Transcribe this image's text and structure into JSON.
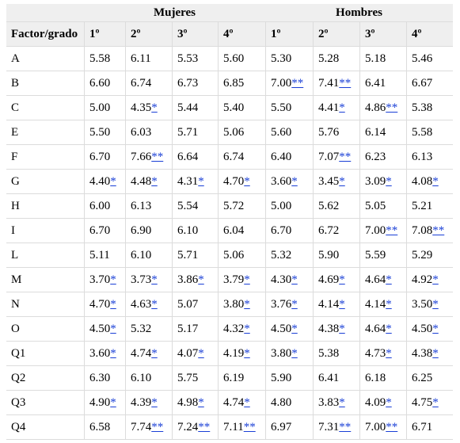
{
  "groups": {
    "mujeres": "Mujeres",
    "hombres": "Hombres"
  },
  "columns": [
    "Factor/grado",
    "1º",
    "2º",
    "3º",
    "4º",
    "1º",
    "2º",
    "3º",
    "4º"
  ],
  "rows": [
    {
      "factor": "A",
      "cells": [
        [
          "5.58",
          ""
        ],
        [
          "6.11",
          ""
        ],
        [
          "5.53",
          ""
        ],
        [
          "5.60",
          ""
        ],
        [
          "5.30",
          ""
        ],
        [
          "5.28",
          ""
        ],
        [
          "5.18",
          ""
        ],
        [
          "5.46",
          ""
        ]
      ]
    },
    {
      "factor": "B",
      "cells": [
        [
          "6.60",
          ""
        ],
        [
          "6.74",
          ""
        ],
        [
          "6.73",
          ""
        ],
        [
          "6.85",
          ""
        ],
        [
          "7.00",
          "**"
        ],
        [
          "7.41",
          "**"
        ],
        [
          "6.41",
          ""
        ],
        [
          "6.67",
          ""
        ]
      ]
    },
    {
      "factor": "C",
      "cells": [
        [
          "5.00",
          ""
        ],
        [
          "4.35",
          "*"
        ],
        [
          "5.44",
          ""
        ],
        [
          "5.40",
          ""
        ],
        [
          "5.50",
          ""
        ],
        [
          "4.41",
          "*"
        ],
        [
          "4.86",
          "**"
        ],
        [
          "5.38",
          ""
        ]
      ]
    },
    {
      "factor": "E",
      "cells": [
        [
          "5.50",
          ""
        ],
        [
          "6.03",
          ""
        ],
        [
          "5.71",
          ""
        ],
        [
          "5.06",
          ""
        ],
        [
          "5.60",
          ""
        ],
        [
          "5.76",
          ""
        ],
        [
          "6.14",
          ""
        ],
        [
          "5.58",
          ""
        ]
      ]
    },
    {
      "factor": "F",
      "cells": [
        [
          "6.70",
          ""
        ],
        [
          "7.66",
          "**"
        ],
        [
          "6.64",
          ""
        ],
        [
          "6.74",
          ""
        ],
        [
          "6.40",
          ""
        ],
        [
          "7.07",
          "**"
        ],
        [
          "6.23",
          ""
        ],
        [
          "6.13",
          ""
        ]
      ]
    },
    {
      "factor": "G",
      "cells": [
        [
          "4.40",
          "*"
        ],
        [
          "4.48",
          "*"
        ],
        [
          "4.31",
          "*"
        ],
        [
          "4.70",
          "*"
        ],
        [
          "3.60",
          "*"
        ],
        [
          "3.45",
          "*"
        ],
        [
          "3.09",
          "*"
        ],
        [
          "4.08",
          "*"
        ]
      ]
    },
    {
      "factor": "H",
      "cells": [
        [
          "6.00",
          ""
        ],
        [
          "6.13",
          ""
        ],
        [
          "5.54",
          ""
        ],
        [
          "5.72",
          ""
        ],
        [
          "5.00",
          ""
        ],
        [
          "5.62",
          ""
        ],
        [
          "5.05",
          ""
        ],
        [
          "5.21",
          ""
        ]
      ]
    },
    {
      "factor": "I",
      "cells": [
        [
          "6.70",
          ""
        ],
        [
          "6.90",
          ""
        ],
        [
          "6.10",
          ""
        ],
        [
          "6.04",
          ""
        ],
        [
          "6.70",
          ""
        ],
        [
          "6.72",
          ""
        ],
        [
          "7.00",
          "**"
        ],
        [
          "7.08",
          "**"
        ]
      ]
    },
    {
      "factor": "L",
      "cells": [
        [
          "5.11",
          ""
        ],
        [
          "6.10",
          ""
        ],
        [
          "5.71",
          ""
        ],
        [
          "5.06",
          ""
        ],
        [
          "5.32",
          ""
        ],
        [
          "5.90",
          ""
        ],
        [
          "5.59",
          ""
        ],
        [
          "5.29",
          ""
        ]
      ]
    },
    {
      "factor": "M",
      "cells": [
        [
          "3.70",
          "*"
        ],
        [
          "3.73",
          "*"
        ],
        [
          "3.86",
          "*"
        ],
        [
          "3.79",
          "*"
        ],
        [
          "4.30",
          "*"
        ],
        [
          "4.69",
          "*"
        ],
        [
          "4.64",
          "*"
        ],
        [
          "4.92",
          "*"
        ]
      ]
    },
    {
      "factor": "N",
      "cells": [
        [
          "4.70",
          "*"
        ],
        [
          "4.63",
          "*"
        ],
        [
          "5.07",
          ""
        ],
        [
          "3.80",
          "*"
        ],
        [
          "3.76",
          "*"
        ],
        [
          "4.14",
          "*"
        ],
        [
          "4.14",
          "*"
        ],
        [
          "3.50",
          "*"
        ]
      ]
    },
    {
      "factor": "O",
      "cells": [
        [
          "4.50",
          "*"
        ],
        [
          "5.32",
          ""
        ],
        [
          "5.17",
          ""
        ],
        [
          "4.32",
          "*"
        ],
        [
          "4.50",
          "*"
        ],
        [
          "4.38",
          "*"
        ],
        [
          "4.64",
          "*"
        ],
        [
          "4.50",
          "*"
        ]
      ]
    },
    {
      "factor": "Q1",
      "cells": [
        [
          "3.60",
          "*"
        ],
        [
          "4.74",
          "*"
        ],
        [
          "4.07",
          "*"
        ],
        [
          "4.19",
          "*"
        ],
        [
          "3.80",
          "*"
        ],
        [
          "5.38",
          ""
        ],
        [
          "4.73",
          "*"
        ],
        [
          "4.38",
          "*"
        ]
      ]
    },
    {
      "factor": "Q2",
      "cells": [
        [
          "6.30",
          ""
        ],
        [
          "6.10",
          ""
        ],
        [
          "5.75",
          ""
        ],
        [
          "6.19",
          ""
        ],
        [
          "5.90",
          ""
        ],
        [
          "6.41",
          ""
        ],
        [
          "6.18",
          ""
        ],
        [
          "6.25",
          ""
        ]
      ]
    },
    {
      "factor": "Q3",
      "cells": [
        [
          "4.90",
          "*"
        ],
        [
          "4.39",
          "*"
        ],
        [
          "4.98",
          "*"
        ],
        [
          "4.74",
          "*"
        ],
        [
          "4.80",
          ""
        ],
        [
          "3.83",
          "*"
        ],
        [
          "4.09",
          "*"
        ],
        [
          "4.75",
          "*"
        ]
      ]
    },
    {
      "factor": "Q4",
      "cells": [
        [
          "6.58",
          ""
        ],
        [
          "7.74",
          "**"
        ],
        [
          "7.24",
          "**"
        ],
        [
          "7.11",
          "**"
        ],
        [
          "6.97",
          ""
        ],
        [
          "7.31",
          "**"
        ],
        [
          "7.00",
          "**"
        ],
        [
          "6.71",
          ""
        ]
      ]
    }
  ]
}
